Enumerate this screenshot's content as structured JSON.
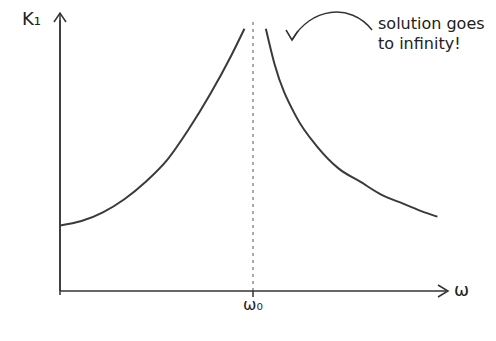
{
  "chart_data": {
    "type": "line",
    "x_label": "ω",
    "y_label": "K₁",
    "annotation": "solution goes to infinity!",
    "x": [
      0,
      0.5,
      1,
      1.5,
      2,
      2.5,
      3,
      3.5,
      4,
      4.3,
      4.5,
      4.8,
      5,
      5.5,
      6,
      6.5,
      7,
      7.5,
      8,
      8.5,
      8.8
    ],
    "values": [
      1.5,
      1.6,
      1.8,
      2.1,
      2.5,
      3.0,
      3.7,
      4.5,
      5.4,
      6.0,
      null,
      6.0,
      5.2,
      4.0,
      3.3,
      2.8,
      2.5,
      2.2,
      2.0,
      1.8,
      1.7
    ],
    "color": "#3a3a3a",
    "xlim": [
      0,
      9
    ],
    "ylim": [
      0,
      6.2
    ],
    "xticks": [
      {
        "value": 4.5,
        "label": "ω₀"
      }
    ],
    "tick_labels": "x",
    "grid": false,
    "line_style": "solid"
  }
}
